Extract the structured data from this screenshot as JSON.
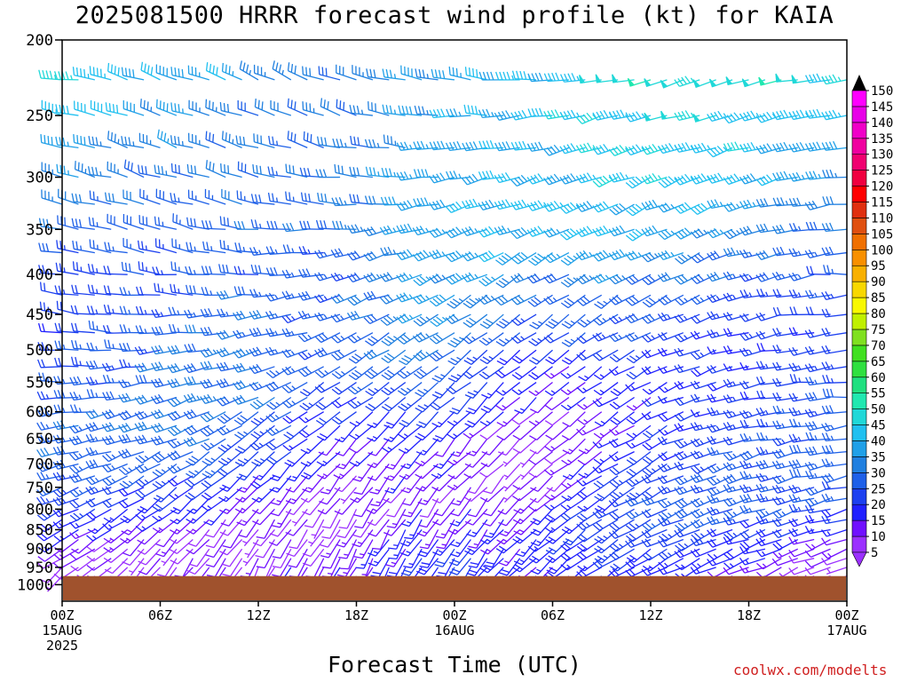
{
  "title": "2025081500 HRRR forecast wind profile (kt) for KAIA",
  "x_axis_title": "Forecast Time (UTC)",
  "credit": "coolwx.com/modelts",
  "chart_data": {
    "type": "wind-barb-profile",
    "title": "2025081500 HRRR forecast wind profile (kt) for KAIA",
    "xlabel": "Forecast Time (UTC)",
    "ylabel": "",
    "x_ticks": [
      {
        "hour": 0,
        "lines": [
          "00Z",
          "15AUG",
          "2025"
        ]
      },
      {
        "hour": 6,
        "lines": [
          "06Z"
        ]
      },
      {
        "hour": 12,
        "lines": [
          "12Z"
        ]
      },
      {
        "hour": 18,
        "lines": [
          "18Z"
        ]
      },
      {
        "hour": 24,
        "lines": [
          "00Z",
          "16AUG"
        ]
      },
      {
        "hour": 30,
        "lines": [
          "06Z"
        ]
      },
      {
        "hour": 36,
        "lines": [
          "12Z"
        ]
      },
      {
        "hour": 42,
        "lines": [
          "18Z"
        ]
      },
      {
        "hour": 48,
        "lines": [
          "00Z",
          "17AUG"
        ]
      }
    ],
    "xlim": [
      0,
      48
    ],
    "y_scale": "log-pressure",
    "ylim": [
      1050,
      200
    ],
    "y_ticks": [
      200,
      250,
      300,
      350,
      400,
      450,
      500,
      550,
      600,
      650,
      700,
      750,
      800,
      850,
      900,
      950,
      1000
    ],
    "surface_pressure_hpa": 975,
    "colorbar": {
      "unit": "kt",
      "ticks": [
        5,
        10,
        15,
        20,
        25,
        30,
        35,
        40,
        45,
        50,
        55,
        60,
        65,
        70,
        75,
        80,
        85,
        90,
        95,
        100,
        105,
        110,
        115,
        120,
        125,
        130,
        135,
        140,
        145,
        150
      ],
      "colors": [
        "#9b30ff",
        "#7010ff",
        "#2020ff",
        "#1c40f0",
        "#1e60e8",
        "#2080e0",
        "#20a0e8",
        "#20c0f0",
        "#20d8d8",
        "#20e8b0",
        "#20e080",
        "#30e040",
        "#40e020",
        "#80e020",
        "#c0f000",
        "#f8f800",
        "#f8d800",
        "#f8b000",
        "#f89000",
        "#f07000",
        "#e05010",
        "#e03010",
        "#ff0000",
        "#f00040",
        "#f00070",
        "#f000a0",
        "#f000c8",
        "#e800e8",
        "#ff00ff"
      ]
    },
    "wind_profile_summary": [
      {
        "pressure_range": "200-300 hPa",
        "speed_kt": "30-50",
        "direction": "westerly"
      },
      {
        "pressure_range": "350-500 hPa",
        "speed_kt": "20-40",
        "direction": "west-northwesterly"
      },
      {
        "pressure_range": "550-750 hPa",
        "speed_kt": "10-35",
        "direction": "westerly to southwesterly"
      },
      {
        "pressure_range": "800-1000 hPa",
        "speed_kt": "5-25",
        "direction": "southerly to southwesterly"
      }
    ]
  }
}
